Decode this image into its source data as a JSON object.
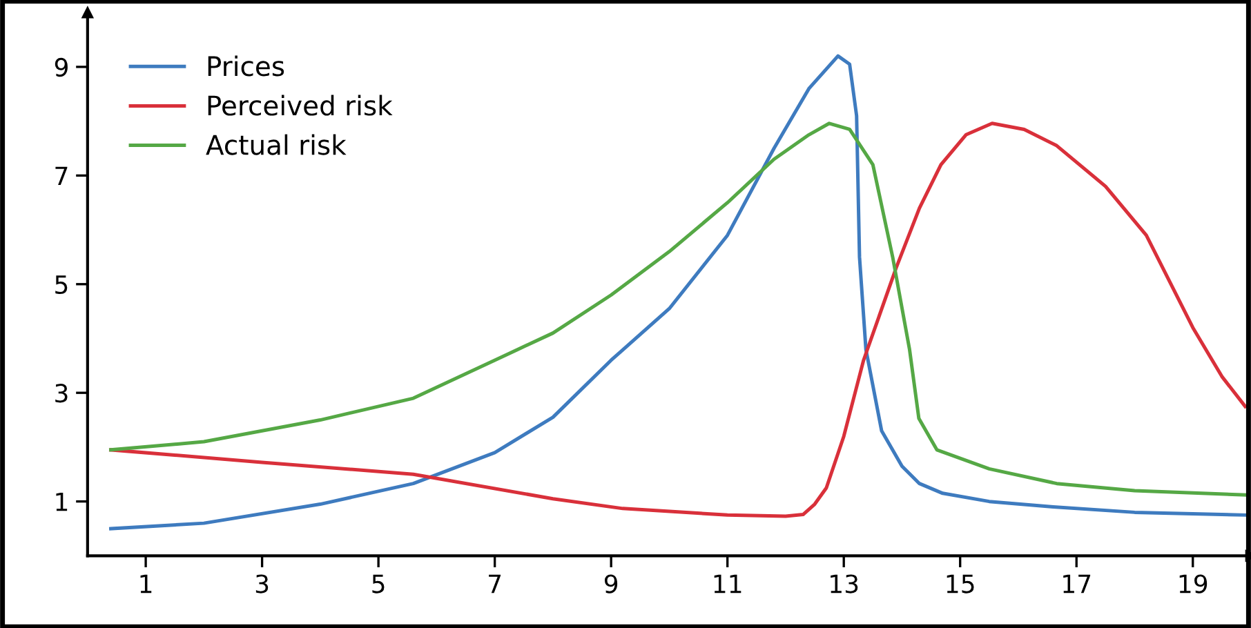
{
  "chart_data": {
    "type": "line",
    "xlim": [
      0,
      20
    ],
    "ylim": [
      0,
      10
    ],
    "xticks": [
      1,
      3,
      5,
      7,
      9,
      11,
      13,
      15,
      17,
      19
    ],
    "yticks": [
      1,
      3,
      5,
      7,
      9
    ],
    "grid": false,
    "legend": "top left",
    "marker": "none",
    "line_style": "solid",
    "series": [
      {
        "name": "Prices",
        "color": "#3e7bbf",
        "x": [
          0.4,
          2,
          4,
          5.6,
          7,
          8,
          9,
          10,
          11,
          11.8,
          12.4,
          12.9,
          13.1,
          13.22,
          13.27,
          13.38,
          13.65,
          14.0,
          14.3,
          14.7,
          15.5,
          16.6,
          18,
          19.9
        ],
        "values": [
          0.5,
          0.6,
          0.95,
          1.33,
          1.9,
          2.55,
          3.6,
          4.55,
          5.9,
          7.5,
          8.6,
          9.2,
          9.05,
          8.1,
          5.5,
          3.8,
          2.3,
          1.65,
          1.33,
          1.15,
          1.0,
          0.9,
          0.8,
          0.75
        ]
      },
      {
        "name": "Perceived risk",
        "color": "#d9303a",
        "x": [
          0.4,
          3,
          5.6,
          8,
          9.2,
          11,
          12,
          12.3,
          12.5,
          12.7,
          13.0,
          13.34,
          13.9,
          14.3,
          14.67,
          15.1,
          15.55,
          16.1,
          16.66,
          17.5,
          18.2,
          19.0,
          19.5,
          19.9
        ],
        "values": [
          1.95,
          1.72,
          1.5,
          1.05,
          0.87,
          0.75,
          0.73,
          0.76,
          0.95,
          1.25,
          2.2,
          3.6,
          5.3,
          6.4,
          7.2,
          7.75,
          7.96,
          7.85,
          7.55,
          6.8,
          5.9,
          4.2,
          3.3,
          2.75
        ]
      },
      {
        "name": "Actual risk",
        "color": "#55a845",
        "x": [
          0.4,
          2,
          4,
          5.6,
          7,
          8,
          9,
          10,
          11,
          11.8,
          12.4,
          12.75,
          13.1,
          13.5,
          13.84,
          14.13,
          14.29,
          14.6,
          15.5,
          16.66,
          18,
          19.9
        ],
        "values": [
          1.95,
          2.1,
          2.5,
          2.9,
          3.6,
          4.1,
          4.8,
          5.6,
          6.5,
          7.3,
          7.75,
          7.96,
          7.85,
          7.2,
          5.5,
          3.8,
          2.53,
          1.95,
          1.6,
          1.33,
          1.2,
          1.12
        ]
      }
    ]
  }
}
